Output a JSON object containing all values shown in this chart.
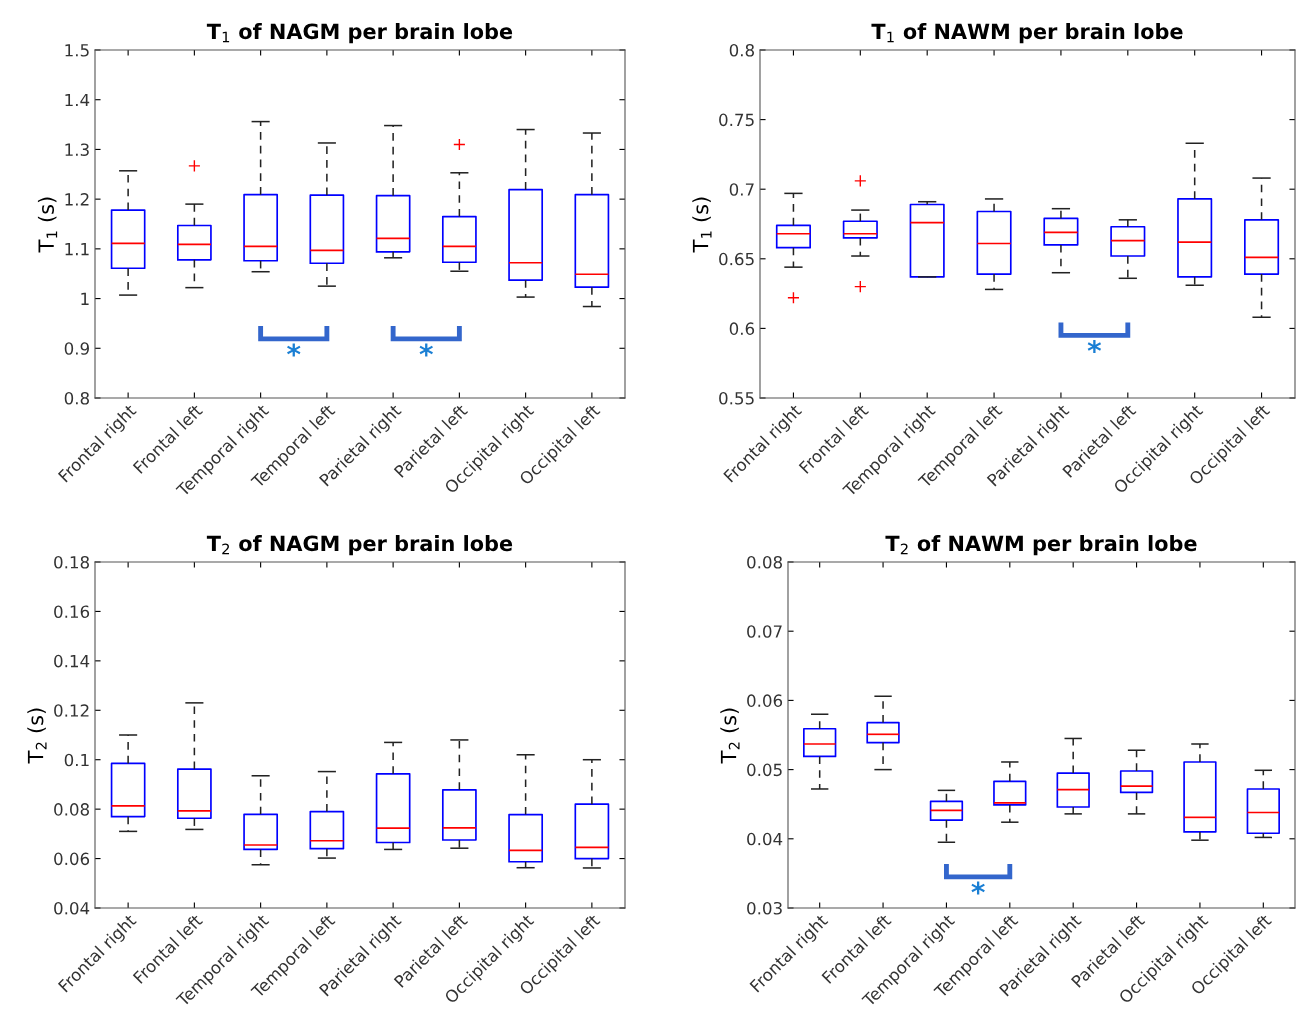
{
  "chart_data": [
    {
      "type": "box",
      "title": "T$_{1}$ of NAGM per brain lobe",
      "ylabel": "T$_{1}$ (s)",
      "categories": [
        "Frontal right",
        "Frontal left",
        "Temporal right",
        "Temporal left",
        "Parietal right",
        "Parietal left",
        "Occipital right",
        "Occipital left"
      ],
      "ylim": [
        0.8,
        1.5
      ],
      "yticks": [
        0.8,
        0.9,
        1,
        1.1,
        1.2,
        1.3,
        1.4,
        1.5
      ],
      "grid": false,
      "boxes": [
        {
          "low": 1.007,
          "q1": 1.061,
          "median": 1.111,
          "q3": 1.178,
          "high": 1.257
        },
        {
          "low": 1.022,
          "q1": 1.078,
          "median": 1.109,
          "q3": 1.147,
          "high": 1.19,
          "outliers": [
            1.267
          ]
        },
        {
          "low": 1.054,
          "q1": 1.076,
          "median": 1.105,
          "q3": 1.209,
          "high": 1.356
        },
        {
          "low": 1.025,
          "q1": 1.071,
          "median": 1.097,
          "q3": 1.208,
          "high": 1.313
        },
        {
          "low": 1.082,
          "q1": 1.094,
          "median": 1.121,
          "q3": 1.207,
          "high": 1.348
        },
        {
          "low": 1.055,
          "q1": 1.073,
          "median": 1.105,
          "q3": 1.165,
          "high": 1.253,
          "outliers": [
            1.31
          ]
        },
        {
          "low": 1.003,
          "q1": 1.037,
          "median": 1.072,
          "q3": 1.219,
          "high": 1.34
        },
        {
          "low": 0.984,
          "q1": 1.023,
          "median": 1.049,
          "q3": 1.209,
          "high": 1.333
        }
      ],
      "annotations": [
        "*",
        "*"
      ]
    },
    {
      "type": "box",
      "title": "T$_{1}$ of NAWM per brain lobe",
      "ylabel": "T$_{1}$ (s)",
      "categories": [
        "Frontal right",
        "Frontal left",
        "Temporal right",
        "Temporal left",
        "Parietal right",
        "Parietal left",
        "Occipital right",
        "Occipital left"
      ],
      "ylim": [
        0.55,
        0.8
      ],
      "yticks": [
        0.55,
        0.6,
        0.65,
        0.7,
        0.75,
        0.8
      ],
      "grid": false,
      "boxes": [
        {
          "low": 0.644,
          "q1": 0.658,
          "median": 0.668,
          "q3": 0.674,
          "high": 0.697,
          "outliers": [
            0.622
          ]
        },
        {
          "low": 0.652,
          "q1": 0.665,
          "median": 0.668,
          "q3": 0.677,
          "high": 0.685,
          "outliers": [
            0.706,
            0.63
          ]
        },
        {
          "low": 0.637,
          "q1": 0.637,
          "median": 0.676,
          "q3": 0.689,
          "high": 0.691
        },
        {
          "low": 0.628,
          "q1": 0.639,
          "median": 0.661,
          "q3": 0.684,
          "high": 0.693
        },
        {
          "low": 0.64,
          "q1": 0.66,
          "median": 0.669,
          "q3": 0.679,
          "high": 0.686
        },
        {
          "low": 0.636,
          "q1": 0.652,
          "median": 0.663,
          "q3": 0.673,
          "high": 0.678
        },
        {
          "low": 0.631,
          "q1": 0.637,
          "median": 0.662,
          "q3": 0.693,
          "high": 0.733
        },
        {
          "low": 0.608,
          "q1": 0.639,
          "median": 0.651,
          "q3": 0.678,
          "high": 0.708
        }
      ],
      "annotations": [
        "*"
      ]
    },
    {
      "type": "box",
      "title": "T$_{2}$ of NAGM per brain lobe",
      "ylabel": "T$_{2}$ (s)",
      "categories": [
        "Frontal right",
        "Frontal left",
        "Temporal right",
        "Temporal left",
        "Parietal right",
        "Parietal left",
        "Occipital right",
        "Occipital left"
      ],
      "ylim": [
        0.04,
        0.18
      ],
      "yticks": [
        0.04,
        0.06,
        0.08,
        0.1,
        0.12,
        0.14,
        0.16,
        0.18
      ],
      "grid": false,
      "boxes": [
        {
          "low": 0.071,
          "q1": 0.077,
          "median": 0.0813,
          "q3": 0.0985,
          "high": 0.11
        },
        {
          "low": 0.0718,
          "q1": 0.0763,
          "median": 0.0793,
          "q3": 0.0962,
          "high": 0.123
        },
        {
          "low": 0.0575,
          "q1": 0.0637,
          "median": 0.0655,
          "q3": 0.0779,
          "high": 0.0935
        },
        {
          "low": 0.0602,
          "q1": 0.064,
          "median": 0.0672,
          "q3": 0.079,
          "high": 0.0952
        },
        {
          "low": 0.0637,
          "q1": 0.0665,
          "median": 0.0723,
          "q3": 0.0943,
          "high": 0.107
        },
        {
          "low": 0.0642,
          "q1": 0.0675,
          "median": 0.0724,
          "q3": 0.0878,
          "high": 0.108
        },
        {
          "low": 0.0563,
          "q1": 0.0587,
          "median": 0.0633,
          "q3": 0.0778,
          "high": 0.102
        },
        {
          "low": 0.0562,
          "q1": 0.06,
          "median": 0.0645,
          "q3": 0.082,
          "high": 0.1
        }
      ]
    },
    {
      "type": "box",
      "title": "T$_{2}$ of NAWM per brain lobe",
      "ylabel": "T$_{2}$ (s)",
      "categories": [
        "Frontal right",
        "Frontal left",
        "Temporal right",
        "Temporal left",
        "Parietal right",
        "Parietal left",
        "Occipital right",
        "Occipital left"
      ],
      "ylim": [
        0.03,
        0.08
      ],
      "yticks": [
        0.03,
        0.04,
        0.05,
        0.06,
        0.07,
        0.08
      ],
      "grid": false,
      "boxes": [
        {
          "low": 0.0472,
          "q1": 0.0519,
          "median": 0.0537,
          "q3": 0.0559,
          "high": 0.058
        },
        {
          "low": 0.05,
          "q1": 0.0539,
          "median": 0.0551,
          "q3": 0.0568,
          "high": 0.0606
        },
        {
          "low": 0.0395,
          "q1": 0.0427,
          "median": 0.0441,
          "q3": 0.0454,
          "high": 0.047
        },
        {
          "low": 0.0424,
          "q1": 0.0449,
          "median": 0.0452,
          "q3": 0.0483,
          "high": 0.0511
        },
        {
          "low": 0.0436,
          "q1": 0.0446,
          "median": 0.0471,
          "q3": 0.0495,
          "high": 0.0545
        },
        {
          "low": 0.0436,
          "q1": 0.0467,
          "median": 0.0476,
          "q3": 0.0498,
          "high": 0.0528
        },
        {
          "low": 0.0398,
          "q1": 0.041,
          "median": 0.0431,
          "q3": 0.0511,
          "high": 0.0537
        },
        {
          "low": 0.0402,
          "q1": 0.0408,
          "median": 0.0438,
          "q3": 0.0472,
          "high": 0.0499
        }
      ],
      "annotations": [
        "*"
      ]
    }
  ]
}
